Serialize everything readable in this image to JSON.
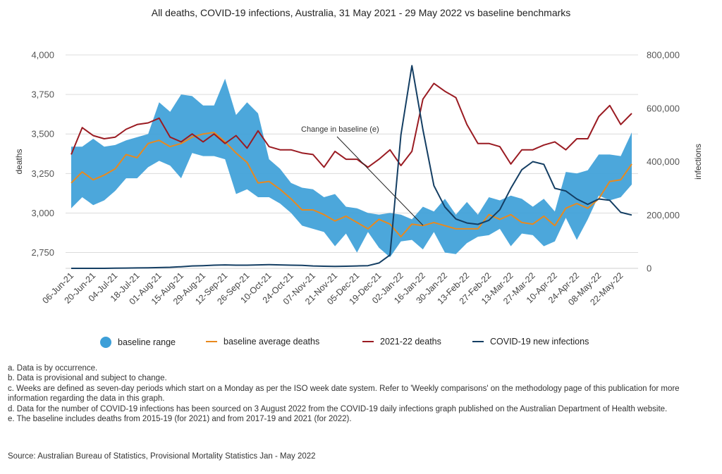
{
  "colors": {
    "baseline_range": "#3d9fd8",
    "baseline_avg": "#e8891e",
    "deaths": "#9a1b22",
    "infections": "#143e63",
    "grid": "#dcdcdc"
  },
  "chart_data": {
    "type": "line",
    "title": "All deaths, COVID-19 infections, Australia, 31 May 2021 - 29 May 2022 vs baseline benchmarks",
    "ylabel": "deaths",
    "y2label": "infections",
    "ylim": [
      2650,
      4000
    ],
    "y2lim": [
      0,
      800000
    ],
    "yticks": [
      "2,750",
      "3,000",
      "3,250",
      "3,500",
      "3,750",
      "4,000"
    ],
    "yticks_values": [
      2750,
      3000,
      3250,
      3500,
      3750,
      4000
    ],
    "y2ticks": [
      "0",
      "200,000",
      "400,000",
      "600,000",
      "800,000"
    ],
    "y2ticks_values": [
      0,
      200000,
      400000,
      600000,
      800000
    ],
    "x_tick_labels": [
      "06-Jun-21",
      "20-Jun-21",
      "04-Jul-21",
      "18-Jul-21",
      "01-Aug-21",
      "15-Aug-21",
      "29-Aug-21",
      "12-Sep-21",
      "26-Sep-21",
      "10-Oct-21",
      "24-Oct-21",
      "07-Nov-21",
      "21-Nov-21",
      "05-Dec-21",
      "19-Dec-21",
      "02-Jan-22",
      "16-Jan-22",
      "30-Jan-22",
      "13-Feb-22",
      "27-Feb-22",
      "13-Mar-22",
      "27-Mar-22",
      "10-Apr-22",
      "24-Apr-22",
      "08-May-22",
      "22-May-22"
    ],
    "weeks": [
      "06-Jun-21",
      "13-Jun-21",
      "20-Jun-21",
      "27-Jun-21",
      "04-Jul-21",
      "11-Jul-21",
      "18-Jul-21",
      "25-Jul-21",
      "01-Aug-21",
      "08-Aug-21",
      "15-Aug-21",
      "22-Aug-21",
      "29-Aug-21",
      "05-Sep-21",
      "12-Sep-21",
      "19-Sep-21",
      "26-Sep-21",
      "03-Oct-21",
      "10-Oct-21",
      "17-Oct-21",
      "24-Oct-21",
      "31-Oct-21",
      "07-Nov-21",
      "14-Nov-21",
      "21-Nov-21",
      "28-Nov-21",
      "05-Dec-21",
      "12-Dec-21",
      "19-Dec-21",
      "26-Dec-21",
      "02-Jan-22",
      "09-Jan-22",
      "16-Jan-22",
      "23-Jan-22",
      "30-Jan-22",
      "06-Feb-22",
      "13-Feb-22",
      "20-Feb-22",
      "27-Feb-22",
      "06-Mar-22",
      "13-Mar-22",
      "20-Mar-22",
      "27-Mar-22",
      "03-Apr-22",
      "10-Apr-22",
      "17-Apr-22",
      "24-Apr-22",
      "01-May-22",
      "08-May-22",
      "15-May-22",
      "22-May-22",
      "29-May-22"
    ],
    "series": [
      {
        "name": "baseline range",
        "kind": "band",
        "upper": [
          3420,
          3420,
          3470,
          3420,
          3430,
          3460,
          3480,
          3500,
          3700,
          3640,
          3750,
          3740,
          3680,
          3680,
          3850,
          3620,
          3700,
          3630,
          3340,
          3280,
          3190,
          3160,
          3150,
          3100,
          3120,
          3040,
          3030,
          3000,
          2990,
          3000,
          2990,
          2960,
          3040,
          3010,
          3090,
          2990,
          3070,
          2990,
          3100,
          3080,
          3110,
          3090,
          3040,
          3090,
          3010,
          3260,
          3250,
          3270,
          3370,
          3370,
          3360,
          3510
        ],
        "lower": [
          3030,
          3100,
          3050,
          3080,
          3140,
          3220,
          3220,
          3290,
          3330,
          3300,
          3220,
          3380,
          3360,
          3360,
          3340,
          3120,
          3150,
          3100,
          3100,
          3060,
          3000,
          2920,
          2900,
          2880,
          2790,
          2870,
          2750,
          2880,
          2780,
          2720,
          2820,
          2830,
          2770,
          2880,
          2750,
          2740,
          2810,
          2850,
          2860,
          2900,
          2790,
          2870,
          2860,
          2790,
          2820,
          2970,
          2830,
          2960,
          3110,
          3080,
          3100,
          3180
        ]
      },
      {
        "name": "baseline average deaths",
        "kind": "line",
        "values": [
          3190,
          3260,
          3210,
          3240,
          3280,
          3370,
          3350,
          3440,
          3460,
          3420,
          3440,
          3480,
          3500,
          3510,
          3450,
          3380,
          3320,
          3190,
          3200,
          3150,
          3090,
          3020,
          3020,
          2990,
          2950,
          2980,
          2940,
          2900,
          2960,
          2930,
          2850,
          2930,
          2920,
          2940,
          2920,
          2900,
          2900,
          2900,
          2990,
          2960,
          2990,
          2940,
          2930,
          2980,
          2920,
          3030,
          3060,
          3030,
          3090,
          3200,
          3210,
          3310
        ]
      },
      {
        "name": "2021-22 deaths",
        "kind": "line",
        "values": [
          3370,
          3540,
          3490,
          3470,
          3480,
          3530,
          3560,
          3570,
          3600,
          3480,
          3450,
          3500,
          3450,
          3500,
          3440,
          3490,
          3410,
          3520,
          3420,
          3400,
          3400,
          3380,
          3370,
          3290,
          3390,
          3340,
          3340,
          3290,
          3340,
          3400,
          3300,
          3390,
          3720,
          3820,
          3770,
          3730,
          3560,
          3440,
          3440,
          3420,
          3310,
          3400,
          3400,
          3430,
          3450,
          3400,
          3470,
          3470,
          3610,
          3680,
          3560,
          3630
        ]
      },
      {
        "name": "COVID-19 new infections",
        "kind": "line",
        "axis": "right",
        "values": [
          0,
          0,
          0,
          0,
          500,
          1000,
          1500,
          2000,
          3000,
          4000,
          6000,
          9000,
          10000,
          12000,
          13000,
          12000,
          12000,
          13000,
          14000,
          13000,
          12000,
          11000,
          9000,
          8000,
          7000,
          8000,
          9000,
          10000,
          20000,
          50000,
          500000,
          760000,
          520000,
          310000,
          230000,
          185000,
          170000,
          165000,
          180000,
          220000,
          300000,
          370000,
          400000,
          390000,
          300000,
          290000,
          260000,
          240000,
          260000,
          255000,
          210000,
          200000
        ]
      }
    ],
    "annotation": "Change in baseline (e)",
    "legend": [
      "baseline range",
      "baseline average deaths",
      "2021-22 deaths",
      "COVID-19 new infections"
    ]
  },
  "notes": [
    "a. Data is by occurrence.",
    "b. Data is provisional and subject to change.",
    "c. Weeks are defined as seven-day periods which start on a Monday as per the ISO week date system. Refer to 'Weekly comparisons' on the methodology page of this publication for more information regarding the data in this graph.",
    "d. Data for the number of COVID-19 infections has been sourced on 3 August 2022 from the COVID-19 daily infections graph published on the Australian Department of Health website.",
    "e. The baseline includes deaths from 2015-19 (for 2021) and from 2017-19 and 2021 (for 2022)."
  ],
  "source": "Source: Australian Bureau of Statistics, Provisional Mortality Statistics Jan - May 2022"
}
